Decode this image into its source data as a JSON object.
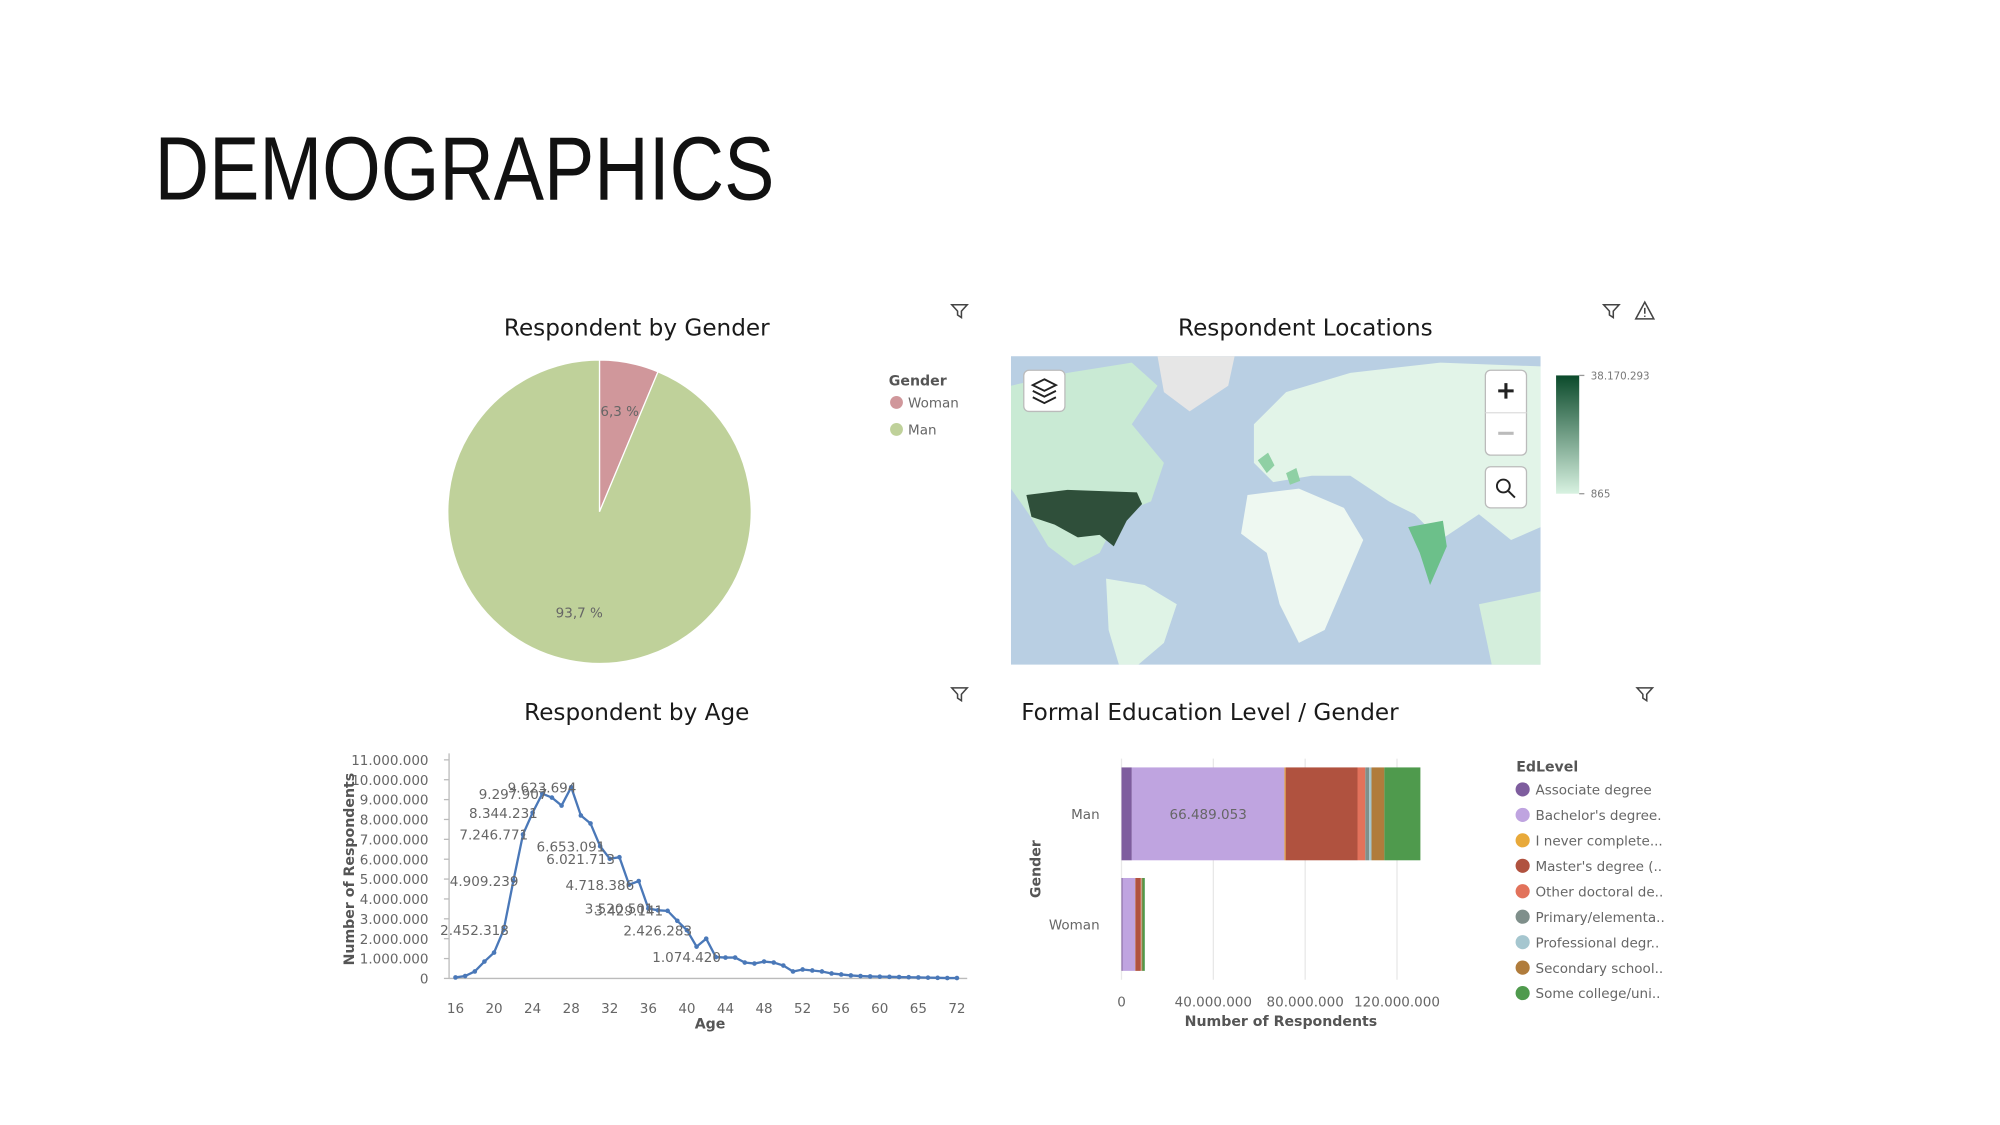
{
  "title": "DEMOGRAPHICS",
  "chart_data": [
    {
      "type": "pie",
      "title": "Respondent by Gender",
      "legend_title": "Gender",
      "categories": [
        "Woman",
        "Man"
      ],
      "values": [
        6.3,
        93.7
      ],
      "value_labels": [
        "6,3 %",
        "93,7 %"
      ],
      "colors": [
        "#d0979b",
        "#bfd19a"
      ]
    },
    {
      "type": "map",
      "title": "Respondent Locations",
      "clim": [
        865,
        38170293
      ],
      "cticks": [
        {
          "value": 38170293,
          "label": "38.170.293"
        },
        865
      ],
      "colors": [
        "#d8f2e1",
        "#0b4a2b"
      ]
    },
    {
      "type": "line",
      "title": "Respondent by Age",
      "xlabel": "Age",
      "ylabel": "Number of Respondents",
      "color": "#4a78b8",
      "categories": [
        "16",
        null,
        null,
        null,
        "20",
        null,
        null,
        null,
        "24",
        null,
        null,
        null,
        "28",
        null,
        null,
        null,
        "32",
        null,
        null,
        null,
        "36",
        null,
        null,
        null,
        "40",
        null,
        null,
        null,
        "44",
        null,
        null,
        null,
        "48",
        null,
        null,
        null,
        "52",
        null,
        null,
        null,
        "56",
        null,
        null,
        null,
        "60",
        null,
        null,
        null,
        "65",
        null,
        null,
        null,
        "72"
      ],
      "values": [
        50000,
        120000,
        350000,
        850000,
        1300000,
        2452318,
        4909239,
        7246771,
        8344231,
        9297907,
        9100000,
        8700000,
        9623694,
        8200000,
        7800000,
        6653091,
        6021713,
        6100000,
        4718386,
        4900000,
        3520501,
        3429141,
        3400000,
        2900000,
        2426283,
        1600000,
        2000000,
        1074420,
        1050000,
        1050000,
        800000,
        750000,
        850000,
        800000,
        650000,
        350000,
        450000,
        400000,
        350000,
        250000,
        200000,
        150000,
        120000,
        100000,
        90000,
        80000,
        70000,
        60000,
        50000,
        40000,
        30000,
        20000,
        20000
      ],
      "value_labels": [
        null,
        null,
        null,
        null,
        null,
        "2.452.318",
        "4.909.239",
        "7.246.771",
        "8.344.231",
        "9.297.907",
        null,
        null,
        "9.623.694",
        null,
        null,
        "6.653.091",
        "6.021.713",
        null,
        "4.718.386",
        null,
        "3.520.501",
        "3.429.141",
        null,
        null,
        "2.426.283",
        null,
        null,
        "1.074.420",
        null,
        null,
        null,
        null,
        null,
        null,
        null,
        null,
        null,
        null,
        null,
        null,
        null,
        null,
        null,
        null,
        null,
        null,
        null,
        null,
        null,
        null,
        null,
        null,
        null
      ],
      "ylim": [
        0,
        11000000
      ],
      "yticks": [
        0,
        {
          "value": 1000000,
          "label": "1.000.000"
        },
        {
          "value": 2000000,
          "label": "2.000.000"
        },
        {
          "value": 3000000,
          "label": "3.000.000"
        },
        {
          "value": 4000000,
          "label": "4.000.000"
        },
        {
          "value": 5000000,
          "label": "5.000.000"
        },
        {
          "value": 6000000,
          "label": "6.000.000"
        },
        {
          "value": 7000000,
          "label": "7.000.000"
        },
        {
          "value": 8000000,
          "label": "8.000.000"
        },
        {
          "value": 9000000,
          "label": "9.000.000"
        },
        {
          "value": 10000000,
          "label": "10.000.000"
        },
        {
          "value": 11000000,
          "label": "11.000.000"
        }
      ]
    },
    {
      "type": "hbar",
      "title": "Formal Education Level / Gender",
      "xlabel": "Number of Respondents",
      "ylabel": "Gender",
      "legend_title": "EdLevel",
      "categories": [
        "Man",
        "Woman"
      ],
      "series": [
        {
          "name": "Associate degree",
          "color": "#7e5d9e",
          "values": [
            4500000,
            500000
          ]
        },
        {
          "name": "Bachelor's degree.",
          "color": "#bfa4e0",
          "values": [
            66489053,
            5500000
          ],
          "value_labels": [
            "66.489.053",
            null
          ]
        },
        {
          "name": "I never complete...",
          "color": "#e8a93a",
          "values": [
            500000,
            50000
          ]
        },
        {
          "name": "Master's degree (..",
          "color": "#b0523f",
          "values": [
            31300000,
            2200000
          ]
        },
        {
          "name": "Other doctoral de..",
          "color": "#e2725b",
          "values": [
            3400000,
            300000
          ]
        },
        {
          "name": "Primary/elementa..",
          "color": "#7f8f8b",
          "values": [
            1700000,
            100000
          ]
        },
        {
          "name": "Professional degr..",
          "color": "#a5c6cf",
          "values": [
            1000000,
            100000
          ]
        },
        {
          "name": "Secondary school..",
          "color": "#b07c3c",
          "values": [
            5600000,
            400000
          ]
        },
        {
          "name": "Some college/uni..",
          "color": "#4f9a4d",
          "values": [
            15700000,
            1000000
          ]
        }
      ],
      "xlim": [
        0,
        140000000
      ],
      "xticks": [
        0,
        {
          "value": 40000000,
          "label": "40.000.000"
        },
        {
          "value": 80000000,
          "label": "80.000.000"
        },
        {
          "value": 120000000,
          "label": "120.000.000"
        }
      ]
    }
  ]
}
